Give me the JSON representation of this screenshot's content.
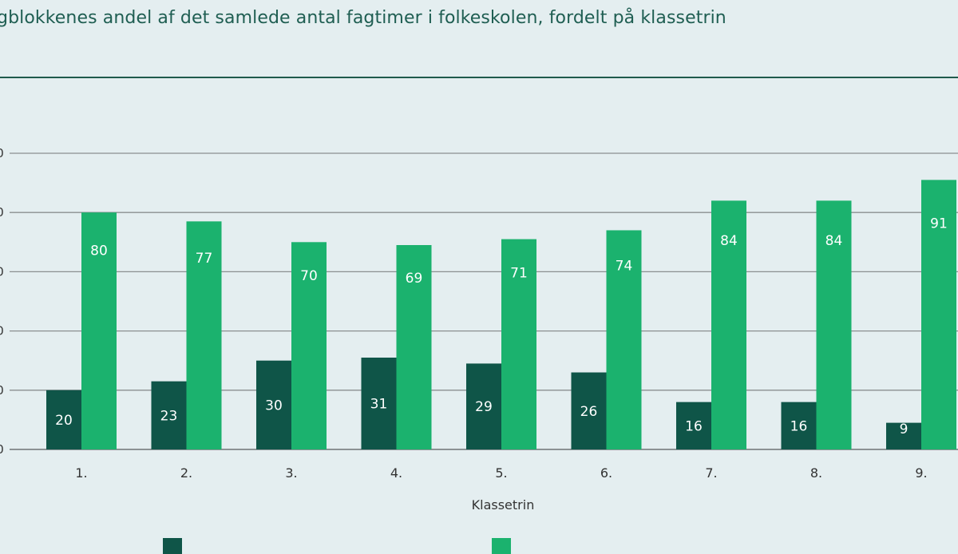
{
  "title": "gblokkenes andel af det samlede antal fagtimer i folkeskolen, fordelt på klassetrin",
  "colors": {
    "background": "#e4eef0",
    "series_dark": "#0f5548",
    "series_light": "#1bb26e",
    "title": "#1f5e52",
    "grid": "#7a7f80"
  },
  "chart_data": {
    "type": "bar",
    "xlabel": "Klassetrin",
    "ylabel": "",
    "categories": [
      "1.",
      "2.",
      "3.",
      "4.",
      "5.",
      "6.",
      "7.",
      "8.",
      "9."
    ],
    "ylim": [
      0,
      100
    ],
    "gridlines": true,
    "y_tick_labels": [
      "0",
      "0",
      "0",
      "0",
      "0",
      "0"
    ],
    "series": [
      {
        "values": [
          20,
          23,
          30,
          31,
          29,
          26,
          16,
          16,
          9
        ],
        "color": "#0f5548"
      },
      {
        "values": [
          80,
          77,
          70,
          69,
          71,
          74,
          84,
          84,
          91
        ],
        "color": "#1bb26e"
      }
    ],
    "legend_position": "bottom"
  }
}
